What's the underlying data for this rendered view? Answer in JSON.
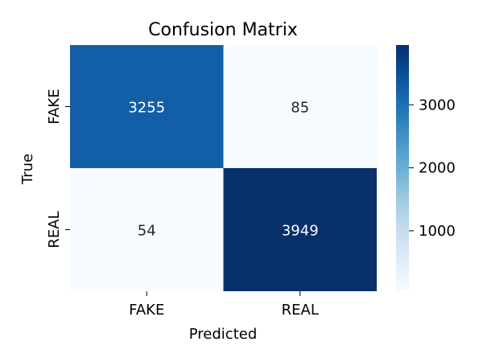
{
  "chart_data": {
    "type": "heatmap",
    "title": "Confusion Matrix",
    "xlabel": "Predicted",
    "ylabel": "True",
    "x_categories": [
      "FAKE",
      "REAL"
    ],
    "y_categories": [
      "FAKE",
      "REAL"
    ],
    "values": [
      [
        3255,
        85
      ],
      [
        54,
        3949
      ]
    ],
    "colormap": "Blues",
    "color_range": [
      54,
      3949
    ],
    "colorbar_ticks": [
      1000,
      2000,
      3000
    ],
    "colorbar_tick_labels": [
      "1000",
      "2000",
      "3000"
    ],
    "annotation_colors": {
      "on_dark": "#ffffff",
      "on_light": "#262626"
    },
    "grid": false,
    "legend": "colorbar-right"
  }
}
